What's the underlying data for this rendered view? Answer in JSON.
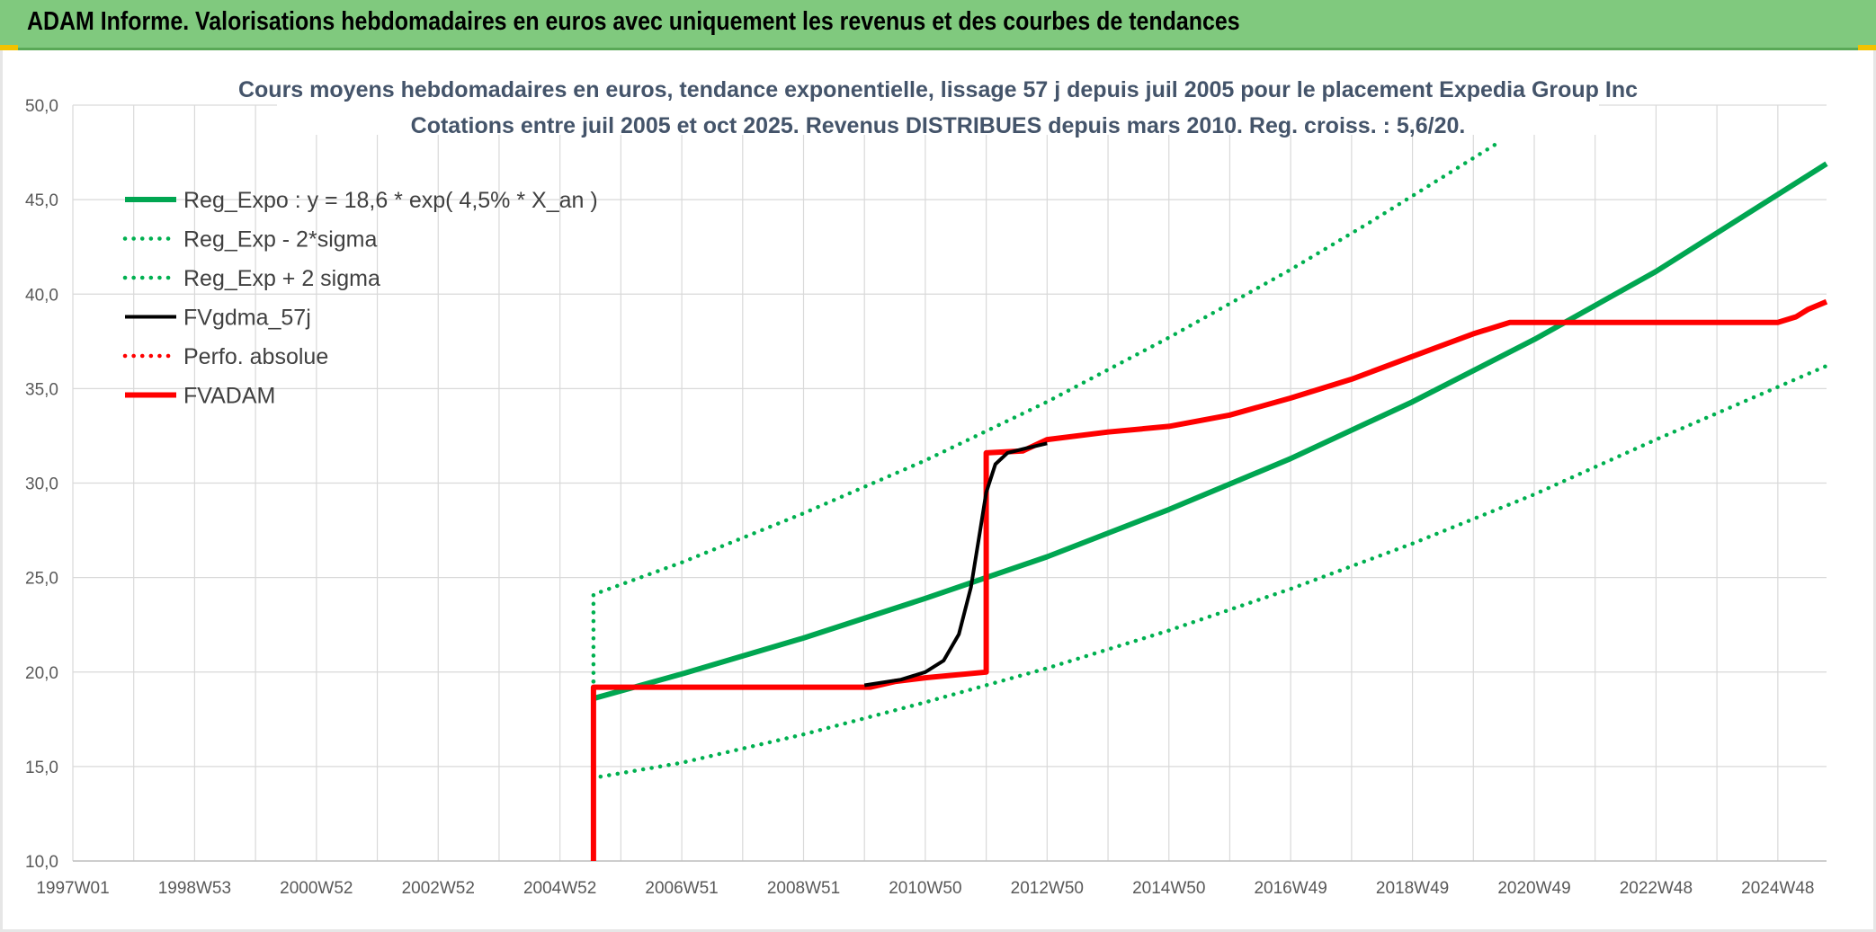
{
  "header": {
    "title": "ADAM Informe. Valorisations hebdomadaires en euros avec uniquement les revenus et des courbes de tendances"
  },
  "colors": {
    "green": "#00a651",
    "green_dot": "#00b050",
    "black": "#000000",
    "red": "#ff0000",
    "grid": "#d9d9d9",
    "banner": "#80c97e"
  },
  "chart_data": {
    "type": "line",
    "title_lines": [
      "Cours moyens hebdomadaires en euros, tendance exponentielle, lissage 57 j depuis juil 2005 pour le placement Expedia Group Inc",
      "Cotations entre juil 2005 et oct 2025. Revenus DISTRIBUES depuis mars 2010. Reg. croiss. : 5,6/20."
    ],
    "xlim": [
      1997.0,
      2025.8
    ],
    "ylim": [
      10,
      50
    ],
    "grid": true,
    "legend_position": "top-left",
    "x_tick_labels": [
      {
        "x": 1997.0,
        "label": "1997W01"
      },
      {
        "x": 1999.0,
        "label": "1998W53"
      },
      {
        "x": 2001.0,
        "label": "2000W52"
      },
      {
        "x": 2003.0,
        "label": "2002W52"
      },
      {
        "x": 2005.0,
        "label": "2004W52"
      },
      {
        "x": 2007.0,
        "label": "2006W51"
      },
      {
        "x": 2009.0,
        "label": "2008W51"
      },
      {
        "x": 2011.0,
        "label": "2010W50"
      },
      {
        "x": 2013.0,
        "label": "2012W50"
      },
      {
        "x": 2015.0,
        "label": "2014W50"
      },
      {
        "x": 2017.0,
        "label": "2016W49"
      },
      {
        "x": 2019.0,
        "label": "2018W49"
      },
      {
        "x": 2021.0,
        "label": "2020W49"
      },
      {
        "x": 2023.0,
        "label": "2022W48"
      },
      {
        "x": 2025.0,
        "label": "2024W48"
      }
    ],
    "y_tick_labels": [
      "10,0",
      "15,0",
      "20,0",
      "25,0",
      "30,0",
      "35,0",
      "40,0",
      "45,0",
      "50,0"
    ],
    "y_ticks": [
      10,
      15,
      20,
      25,
      30,
      35,
      40,
      45,
      50
    ],
    "series": [
      {
        "name": "Reg_Expo : y = 18,6 * exp( 4,5% *  X_an )",
        "style": "solid-thick",
        "color": "#00a651",
        "points": [
          [
            2005.55,
            18.6
          ],
          [
            2007,
            19.9
          ],
          [
            2009,
            21.8
          ],
          [
            2011,
            23.9
          ],
          [
            2013,
            26.1
          ],
          [
            2015,
            28.6
          ],
          [
            2017,
            31.3
          ],
          [
            2019,
            34.3
          ],
          [
            2021,
            37.6
          ],
          [
            2023,
            41.2
          ],
          [
            2025.8,
            46.9
          ]
        ]
      },
      {
        "name": "Reg_Exp - 2*sigma",
        "style": "dotted",
        "color": "#00b050",
        "points": [
          [
            2005.55,
            19.5
          ],
          [
            2005.55,
            14.4
          ],
          [
            2007,
            15.2
          ],
          [
            2009,
            16.7
          ],
          [
            2011,
            18.4
          ],
          [
            2013,
            20.2
          ],
          [
            2015,
            22.2
          ],
          [
            2017,
            24.4
          ],
          [
            2019,
            26.8
          ],
          [
            2021,
            29.4
          ],
          [
            2023,
            32.3
          ],
          [
            2025.8,
            36.2
          ]
        ]
      },
      {
        "name": "Reg_Exp + 2 sigma",
        "style": "dotted",
        "color": "#00b050",
        "points": [
          [
            2005.55,
            19.5
          ],
          [
            2005.55,
            24.1
          ],
          [
            2007,
            25.8
          ],
          [
            2009,
            28.4
          ],
          [
            2011,
            31.2
          ],
          [
            2013,
            34.3
          ],
          [
            2015,
            37.7
          ],
          [
            2017,
            41.3
          ],
          [
            2018.3,
            43.8
          ],
          [
            2019.6,
            46.4
          ],
          [
            2020.4,
            48.0
          ]
        ]
      },
      {
        "name": "FVgdma_57j",
        "style": "solid",
        "color": "#000000",
        "points": [
          [
            2010.0,
            19.3
          ],
          [
            2010.6,
            19.6
          ],
          [
            2011.0,
            20.0
          ],
          [
            2011.3,
            20.6
          ],
          [
            2011.55,
            22.0
          ],
          [
            2011.75,
            24.5
          ],
          [
            2011.9,
            27.5
          ],
          [
            2012.0,
            29.5
          ],
          [
            2012.15,
            31.0
          ],
          [
            2012.35,
            31.6
          ],
          [
            2012.6,
            31.8
          ],
          [
            2013.0,
            32.1
          ]
        ]
      },
      {
        "name": "Perfo. absolue",
        "style": "dotted",
        "color": "#ff0000",
        "points": []
      },
      {
        "name": "FVADAM",
        "style": "solid-thick",
        "color": "#ff0000",
        "points": [
          [
            2005.55,
            10.0
          ],
          [
            2005.55,
            19.2
          ],
          [
            2010.1,
            19.2
          ],
          [
            2010.5,
            19.5
          ],
          [
            2011.0,
            19.7
          ],
          [
            2012.0,
            20.0
          ],
          [
            2012.0,
            31.6
          ],
          [
            2012.6,
            31.7
          ],
          [
            2013.0,
            32.3
          ],
          [
            2014.0,
            32.7
          ],
          [
            2015.0,
            33.0
          ],
          [
            2016.0,
            33.6
          ],
          [
            2017.0,
            34.5
          ],
          [
            2018.0,
            35.5
          ],
          [
            2019.0,
            36.7
          ],
          [
            2020.0,
            37.9
          ],
          [
            2020.6,
            38.5
          ],
          [
            2025.0,
            38.5
          ],
          [
            2025.3,
            38.8
          ],
          [
            2025.5,
            39.2
          ],
          [
            2025.8,
            39.6
          ]
        ]
      }
    ]
  }
}
